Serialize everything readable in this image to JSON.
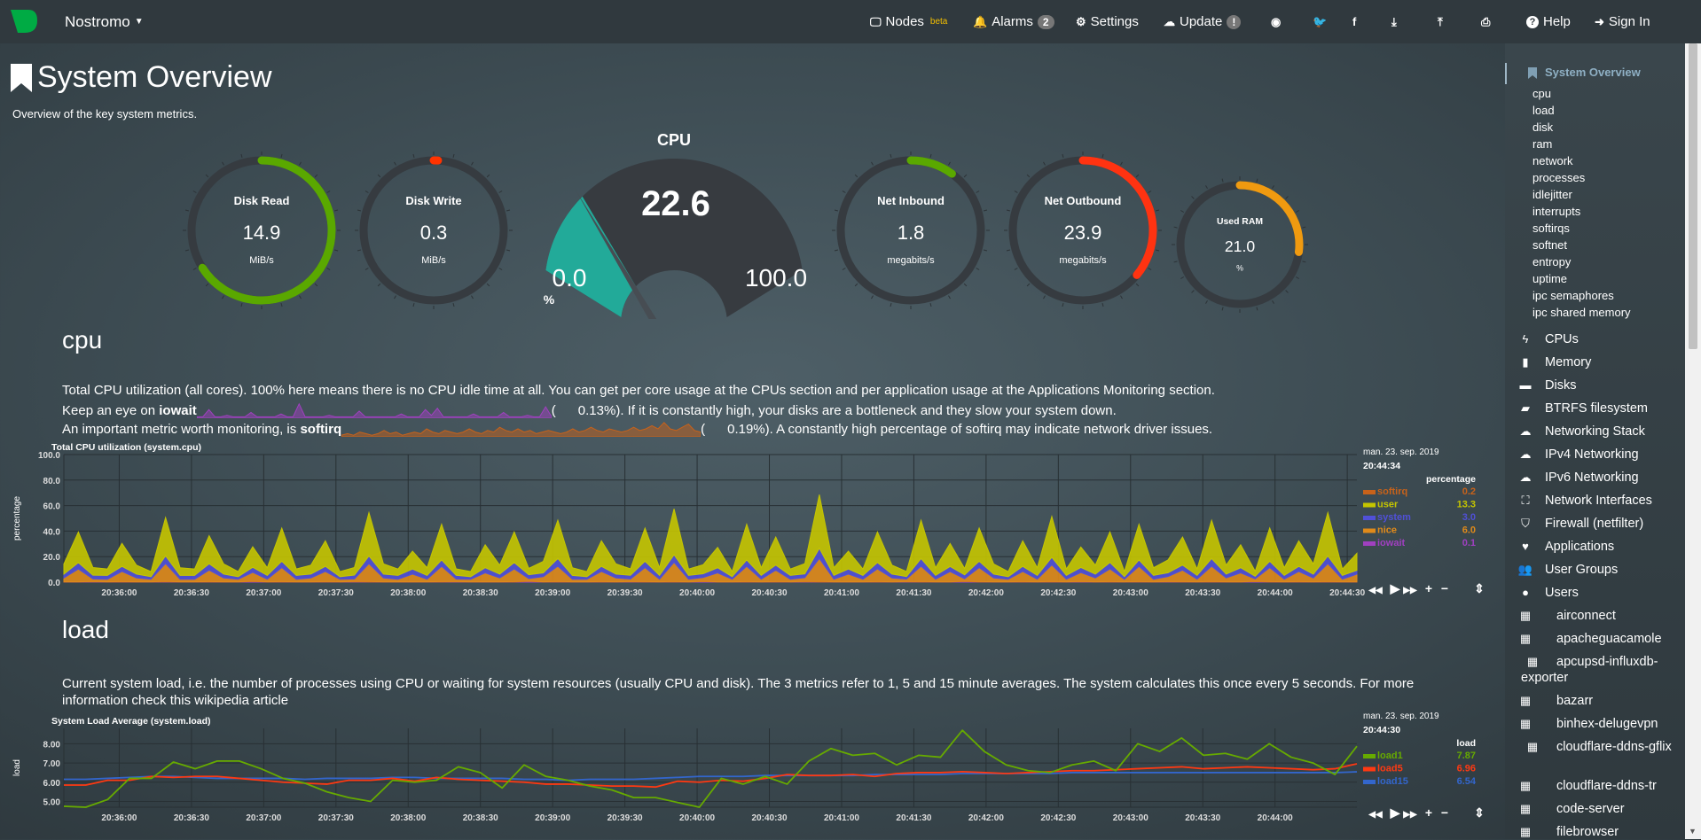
{
  "nav": {
    "brand": "Nostromo",
    "items": [
      {
        "label": "Nodes",
        "icon": "monitor-icon",
        "sup": "beta"
      },
      {
        "label": "Alarms",
        "icon": "bell-icon",
        "badge": "2"
      },
      {
        "label": "Settings",
        "icon": "gear-icon"
      },
      {
        "label": "Update",
        "icon": "cloud-download-icon",
        "badge": "!"
      },
      {
        "label": "",
        "icon": "github-icon"
      },
      {
        "label": "",
        "icon": "twitter-icon"
      },
      {
        "label": "",
        "icon": "facebook-icon"
      },
      {
        "label": "",
        "icon": "download-icon"
      },
      {
        "label": "",
        "icon": "upload-icon"
      },
      {
        "label": "",
        "icon": "print-icon"
      },
      {
        "label": "Help",
        "icon": "question-icon"
      },
      {
        "label": "Sign In",
        "icon": "sign-in-icon"
      }
    ]
  },
  "page": {
    "title": "System Overview",
    "subtitle": "Overview of the key system metrics."
  },
  "gauges": [
    {
      "title": "Disk Read",
      "value": "14.9",
      "unit": "MiB/s",
      "fill": 0.66,
      "color": "#5aa800"
    },
    {
      "title": "Disk Write",
      "value": "0.3",
      "unit": "MiB/s",
      "fill": 0.01,
      "color": "#ff3300"
    },
    {
      "title": "Net Inbound",
      "value": "1.8",
      "unit": "megabits/s",
      "fill": 0.1,
      "color": "#5aa800"
    },
    {
      "title": "Net Outbound",
      "value": "23.9",
      "unit": "megabits/s",
      "fill": 0.36,
      "color": "#ff3311"
    },
    {
      "title": "Used RAM",
      "value": "21.0",
      "unit": "%",
      "fill": 0.27,
      "color": "#f09a10"
    }
  ],
  "cpu_gauge": {
    "title": "CPU",
    "value": "22.6",
    "min": "0.0",
    "max": "100.0",
    "unit": "%",
    "fraction": 0.226,
    "color": "#22aa99"
  },
  "cpu_section": {
    "heading": "cpu",
    "line1": "Total CPU utilization (all cores). 100% here means there is no CPU idle time at all. You can get per core usage at the CPUs section and per application usage at the Applications Monitoring section.",
    "line2_pre": "Keep an eye on ",
    "line2_bold": "iowait",
    "line2_val": "0.13%",
    "line2_post": "). If it is constantly high, your disks are a bottleneck and they slow your system down.",
    "line3_pre": "An important metric worth monitoring, is ",
    "line3_bold": "softirq",
    "line3_val": "0.19%",
    "line3_post": "). A constantly high percentage of softirq may indicate network driver issues.",
    "spark_iowait": [
      0.1,
      0.1,
      0.6,
      0.1,
      0.1,
      0.2,
      0.1,
      0.1,
      0.1,
      0.4,
      0.1,
      0.1,
      0.1,
      0.1,
      0.3,
      0.1,
      0.1,
      1.0,
      0.1,
      0.1,
      0.1,
      0.1,
      0.2,
      0.1,
      0.1,
      0.1,
      0.1,
      0.5,
      0.1,
      0.1,
      0.1,
      0.1,
      0.1,
      0.1,
      0.3,
      0.1,
      0.1,
      0.1,
      0.6,
      0.2,
      0.7,
      0.1,
      0.1,
      0.1,
      0.1,
      0.1,
      0.3,
      0.1,
      0.1,
      0.1,
      0.1,
      0.4,
      0.1,
      0.1,
      0.1,
      0.2,
      0.1,
      0.1,
      0.8,
      0.1
    ],
    "spark_softirq": [
      0.1,
      0.2,
      0.1,
      0.3,
      0.2,
      0.1,
      0.2,
      0.4,
      0.2,
      0.3,
      0.1,
      0.2,
      0.3,
      0.2,
      0.5,
      0.3,
      0.2,
      0.4,
      0.3,
      0.2,
      0.3,
      0.5,
      0.3,
      0.2,
      0.4,
      0.3,
      0.6,
      0.4,
      0.3,
      0.5,
      0.3,
      0.4,
      0.2,
      0.3,
      0.4,
      0.3,
      0.2,
      0.3,
      0.5,
      0.3,
      0.4,
      0.6,
      0.4,
      0.3,
      0.5,
      0.4,
      0.3,
      0.4,
      0.6,
      0.4,
      0.5,
      0.7,
      0.5,
      0.9,
      0.5,
      0.4,
      0.6,
      0.8,
      0.4,
      0.3
    ]
  },
  "load_section": {
    "heading": "load",
    "line1": "Current system load, i.e. the number of processes using CPU or waiting for system resources (usually CPU and disk). The 3 metrics refer to 1, 5 and 15 minute averages. The system calculates this once every 5 seconds. For more information check this wikipedia article"
  },
  "chart_data": [
    {
      "type": "area",
      "stacked": true,
      "title": "Total CPU utilization (system.cpu)",
      "ylabel": "percentage",
      "ylim": [
        0,
        100
      ],
      "yticks": [
        "0.0",
        "20.0",
        "40.0",
        "60.0",
        "80.0",
        "100.0"
      ],
      "xlim": [
        "20:35:37",
        "20:44:34"
      ],
      "xticks": [
        "20:36:00",
        "20:36:30",
        "20:37:00",
        "20:37:30",
        "20:38:00",
        "20:38:30",
        "20:39:00",
        "20:39:30",
        "20:40:00",
        "20:40:30",
        "20:41:00",
        "20:41:30",
        "20:42:00",
        "20:42:30",
        "20:43:00",
        "20:43:30",
        "20:44:00",
        "20:44:30"
      ],
      "legend": {
        "date": "man. 23. sep. 2019",
        "time": "20:44:34",
        "units": "percentage"
      },
      "series": [
        {
          "name": "softirq",
          "color": "#c8621a",
          "last": "0.2",
          "values": [
            0.2,
            0.2,
            0.2,
            0.2,
            0.3,
            0.2,
            0.2,
            0.4,
            0.2,
            0.2,
            0.3,
            0.2,
            0.2,
            0.2,
            0.2,
            0.3,
            0.2,
            0.2,
            0.3,
            0.2,
            0.2,
            0.4,
            0.2,
            0.2,
            0.2,
            0.2,
            0.3,
            0.2,
            0.2,
            0.2,
            0.2,
            0.3,
            0.2,
            0.2,
            0.4,
            0.2,
            0.2,
            0.3,
            0.2,
            0.2,
            0.3,
            0.2,
            0.4,
            0.2,
            0.2,
            0.2,
            0.2,
            0.3,
            0.2,
            0.3,
            0.2,
            0.2,
            0.5,
            0.2,
            0.2,
            0.2,
            0.3,
            0.2,
            0.2,
            0.4,
            0.2,
            0.2,
            0.2,
            0.3,
            0.2,
            0.2,
            0.3,
            0.2,
            0.4,
            0.2,
            0.2,
            0.2,
            0.3,
            0.2,
            0.3,
            0.2,
            0.2,
            0.3,
            0.2,
            0.4,
            0.2,
            0.2,
            0.2,
            0.3,
            0.2,
            0.3,
            0.2,
            0.4,
            0.2,
            0.2
          ]
        },
        {
          "name": "user",
          "color": "#c5c500",
          "last": "13.3",
          "values": [
            8,
            24,
            6,
            5,
            18,
            7,
            4,
            30,
            6,
            5,
            22,
            8,
            4,
            16,
            6,
            26,
            5,
            7,
            20,
            4,
            6,
            34,
            8,
            5,
            14,
            6,
            28,
            5,
            4,
            18,
            7,
            24,
            5,
            9,
            30,
            6,
            4,
            20,
            8,
            5,
            26,
            6,
            36,
            5,
            7,
            16,
            4,
            28,
            6,
            22,
            5,
            8,
            42,
            6,
            14,
            5,
            24,
            7,
            4,
            30,
            6,
            18,
            5,
            26,
            8,
            4,
            20,
            6,
            32,
            5,
            16,
            7,
            24,
            4,
            28,
            6,
            10,
            22,
            5,
            30,
            7,
            18,
            4,
            26,
            6,
            20,
            8,
            34,
            5,
            13.3
          ]
        },
        {
          "name": "system",
          "color": "#5050d8",
          "last": "3.0",
          "values": [
            3,
            5,
            3,
            3,
            4,
            3,
            2,
            6,
            3,
            3,
            5,
            3,
            2,
            4,
            3,
            5,
            3,
            3,
            4,
            2,
            3,
            6,
            3,
            3,
            4,
            3,
            5,
            3,
            2,
            4,
            3,
            5,
            3,
            3,
            6,
            3,
            2,
            4,
            3,
            3,
            5,
            3,
            6,
            3,
            3,
            4,
            2,
            5,
            3,
            4,
            3,
            3,
            8,
            3,
            4,
            3,
            5,
            3,
            2,
            6,
            3,
            4,
            3,
            5,
            3,
            2,
            4,
            3,
            6,
            3,
            4,
            3,
            5,
            2,
            5,
            3,
            3,
            4,
            3,
            6,
            3,
            4,
            2,
            5,
            3,
            4,
            3,
            6,
            3,
            3
          ]
        },
        {
          "name": "nice",
          "color": "#e08a1a",
          "last": "6.0",
          "values": [
            3,
            10,
            2,
            2,
            8,
            3,
            2,
            14,
            2,
            2,
            9,
            3,
            2,
            7,
            2,
            11,
            2,
            3,
            8,
            2,
            2,
            14,
            3,
            2,
            6,
            2,
            12,
            2,
            2,
            7,
            3,
            10,
            2,
            4,
            12,
            2,
            2,
            8,
            3,
            2,
            11,
            2,
            15,
            2,
            3,
            7,
            2,
            12,
            2,
            9,
            2,
            3,
            18,
            2,
            6,
            2,
            10,
            3,
            2,
            12,
            2,
            8,
            2,
            11,
            3,
            2,
            8,
            2,
            13,
            2,
            7,
            3,
            10,
            2,
            12,
            2,
            4,
            9,
            2,
            12,
            3,
            7,
            2,
            11,
            2,
            8,
            3,
            14,
            2,
            6
          ]
        },
        {
          "name": "iowait",
          "color": "#a040c0",
          "last": "0.1",
          "values": [
            0.1,
            0.1,
            0.3,
            0.1,
            0.1,
            0.1,
            0.1,
            0.2,
            0.1,
            0.1,
            0.1,
            0.1,
            0.1,
            0.5,
            0.1,
            0.1,
            0.1,
            0.1,
            0.1,
            0.1,
            0.3,
            0.1,
            0.1,
            0.1,
            0.1,
            0.1,
            0.1,
            0.2,
            0.1,
            0.1,
            0.1,
            0.1,
            0.6,
            0.1,
            0.1,
            0.1,
            0.1,
            0.1,
            0.1,
            0.2,
            0.1,
            0.1,
            0.1,
            0.1,
            0.4,
            0.1,
            0.1,
            0.1,
            0.1,
            0.1,
            0.1,
            0.3,
            0.1,
            0.1,
            0.1,
            0.1,
            0.1,
            0.1,
            0.2,
            0.1,
            0.1,
            0.1,
            0.5,
            0.1,
            0.1,
            0.1,
            0.1,
            0.1,
            0.1,
            0.1,
            0.3,
            0.1,
            0.1,
            0.1,
            0.1,
            0.1,
            0.2,
            0.1,
            0.1,
            0.1,
            0.1,
            0.1,
            0.4,
            0.1,
            0.1,
            0.1,
            0.1,
            0.1,
            0.1,
            0.1
          ]
        }
      ]
    },
    {
      "type": "line",
      "title": "System Load Average (system.load)",
      "ylabel": "load",
      "ylim": [
        4.7,
        8.8
      ],
      "yticks": [
        "5.00",
        "6.00",
        "7.00",
        "8.00"
      ],
      "xlim": [
        "20:35:37",
        "20:44:34"
      ],
      "xticks": [
        "20:36:00",
        "20:36:30",
        "20:37:00",
        "20:37:30",
        "20:38:00",
        "20:38:30",
        "20:39:00",
        "20:39:30",
        "20:40:00",
        "20:40:30",
        "20:41:00",
        "20:41:30",
        "20:42:00",
        "20:42:30",
        "20:43:00",
        "20:43:30",
        "20:44:00"
      ],
      "legend": {
        "date": "man. 23. sep. 2019",
        "time": "20:44:30",
        "units": "load"
      },
      "series": [
        {
          "name": "load1",
          "color": "#66aa00",
          "last": "7.87",
          "values": [
            4.75,
            4.7,
            5.1,
            6.2,
            6.2,
            7.05,
            6.7,
            7.1,
            7.1,
            6.7,
            6.2,
            5.95,
            5.5,
            5.2,
            5.0,
            6.1,
            6.0,
            6.1,
            6.8,
            6.5,
            5.7,
            6.9,
            6.3,
            6.1,
            5.8,
            5.6,
            5.2,
            5.2,
            4.95,
            4.7,
            6.2,
            5.9,
            6.3,
            5.9,
            7.1,
            7.75,
            7.4,
            7.5,
            6.9,
            7.4,
            7.3,
            8.7,
            7.6,
            6.9,
            6.6,
            6.5,
            6.9,
            7.1,
            6.6,
            8.0,
            7.6,
            8.3,
            7.4,
            7.5,
            7.2,
            8.0,
            7.3,
            7.0,
            6.4,
            7.87
          ]
        },
        {
          "name": "load5",
          "color": "#fe3912",
          "last": "6.96",
          "values": [
            5.85,
            5.85,
            6.1,
            6.1,
            6.3,
            6.25,
            6.3,
            6.3,
            6.2,
            6.1,
            6.0,
            5.95,
            5.9,
            6.1,
            6.1,
            6.2,
            6.05,
            6.25,
            6.15,
            6.1,
            6.05,
            6.0,
            5.9,
            5.9,
            5.85,
            5.8,
            5.8,
            5.75,
            6.05,
            6.0,
            6.1,
            6.05,
            6.2,
            6.4,
            6.35,
            6.35,
            6.4,
            6.3,
            6.45,
            6.5,
            6.5,
            6.55,
            6.5,
            6.45,
            6.5,
            6.55,
            6.6,
            6.6,
            6.65,
            6.7,
            6.75,
            6.8,
            6.7,
            6.75,
            6.8,
            6.75,
            6.7,
            6.65,
            6.7,
            6.96
          ]
        },
        {
          "name": "load15",
          "color": "#3366cc",
          "last": "6.54",
          "values": [
            6.15,
            6.15,
            6.2,
            6.25,
            6.3,
            6.3,
            6.25,
            6.2,
            6.2,
            6.2,
            6.2,
            6.15,
            6.2,
            6.2,
            6.2,
            6.25,
            6.25,
            6.2,
            6.2,
            6.2,
            6.2,
            6.15,
            6.15,
            6.1,
            6.15,
            6.15,
            6.15,
            6.2,
            6.25,
            6.3,
            6.3,
            6.3,
            6.35,
            6.35,
            6.35,
            6.35,
            6.35,
            6.4,
            6.4,
            6.4,
            6.4,
            6.45,
            6.45,
            6.45,
            6.45,
            6.45,
            6.5,
            6.5,
            6.5,
            6.5,
            6.5,
            6.5,
            6.5,
            6.5,
            6.5,
            6.5,
            6.5,
            6.5,
            6.5,
            6.54
          ]
        }
      ]
    }
  ],
  "sidebar": {
    "active": "System Overview",
    "sub": [
      "cpu",
      "load",
      "disk",
      "ram",
      "network",
      "processes",
      "idlejitter",
      "interrupts",
      "softirqs",
      "softnet",
      "entropy",
      "uptime",
      "ipc semaphores",
      "ipc shared memory"
    ],
    "sections": [
      {
        "label": "CPUs",
        "icon": "bolt-icon",
        "g": "ϟ"
      },
      {
        "label": "Memory",
        "icon": "memory-icon",
        "g": "▮"
      },
      {
        "label": "Disks",
        "icon": "hdd-icon",
        "g": "▬"
      },
      {
        "label": "BTRFS filesystem",
        "icon": "folder-open-icon",
        "g": "▰"
      },
      {
        "label": "Networking Stack",
        "icon": "cloud-icon",
        "g": "☁"
      },
      {
        "label": "IPv4 Networking",
        "icon": "cloud-icon",
        "g": "☁"
      },
      {
        "label": "IPv6 Networking",
        "icon": "cloud-icon",
        "g": "☁"
      },
      {
        "label": "Network Interfaces",
        "icon": "sitemap-icon",
        "g": "⛶"
      },
      {
        "label": "Firewall (netfilter)",
        "icon": "shield-icon",
        "g": "⛉"
      },
      {
        "label": "Applications",
        "icon": "heartbeat-icon",
        "g": "♥"
      },
      {
        "label": "User Groups",
        "icon": "users-icon",
        "g": "👥"
      },
      {
        "label": "Users",
        "icon": "user-icon",
        "g": "●"
      }
    ],
    "containers": [
      "airconnect",
      "apacheguacamole",
      "apcupsd-influxdb-exporter",
      "bazarr",
      "binhex-delugevpn",
      "cloudflare-ddns-gflix",
      "cloudflare-ddns-tr",
      "code-server",
      "filebrowser"
    ]
  },
  "controls": {
    "back": "◀◀",
    "play": "▶",
    "forward": "▶▶",
    "zoom_in": "+",
    "zoom_out": "−",
    "resize": "⇕"
  }
}
